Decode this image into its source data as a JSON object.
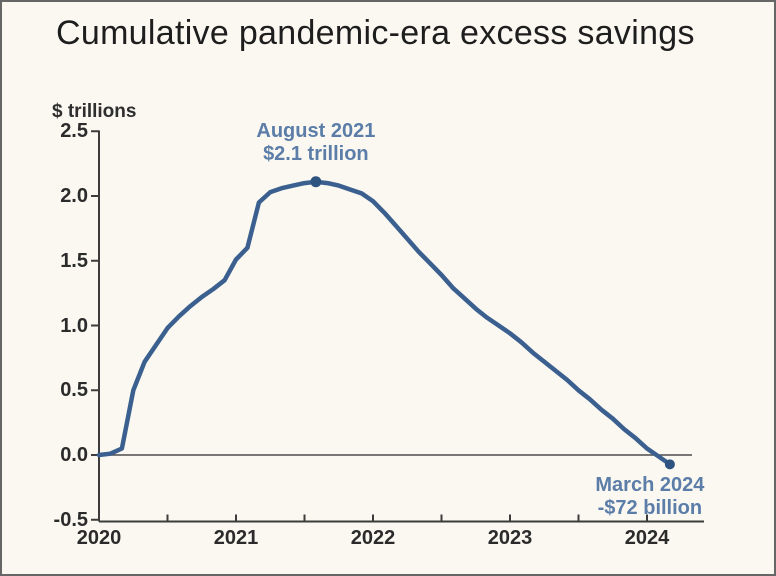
{
  "colors": {
    "background": "#faf8f1",
    "frame_border": "#666666",
    "text": "#1e1e1e",
    "axis": "#3c3c3c",
    "line": "#3b608f",
    "dot": "#2d5380",
    "annotation": "#5b7da8"
  },
  "chart_data": {
    "type": "line",
    "title": "Cumulative pandemic-era excess savings",
    "y_unit_label": "$ trillions",
    "series_name": "Cumulative pandemic-era excess savings",
    "xlim": [
      2020,
      2024.42
    ],
    "ylim": [
      -0.5,
      2.5
    ],
    "grid": "off",
    "legend": "none",
    "x": [
      2020.0,
      2020.083,
      2020.167,
      2020.25,
      2020.333,
      2020.417,
      2020.5,
      2020.583,
      2020.667,
      2020.75,
      2020.833,
      2020.917,
      2021.0,
      2021.083,
      2021.167,
      2021.25,
      2021.333,
      2021.417,
      2021.5,
      2021.583,
      2021.667,
      2021.75,
      2021.833,
      2021.917,
      2022.0,
      2022.083,
      2022.167,
      2022.25,
      2022.333,
      2022.417,
      2022.5,
      2022.583,
      2022.667,
      2022.75,
      2022.833,
      2022.917,
      2023.0,
      2023.083,
      2023.167,
      2023.25,
      2023.333,
      2023.417,
      2023.5,
      2023.583,
      2023.667,
      2023.75,
      2023.833,
      2023.917,
      2024.0,
      2024.083,
      2024.167
    ],
    "values": [
      0.0,
      0.01,
      0.05,
      0.5,
      0.72,
      0.85,
      0.98,
      1.07,
      1.15,
      1.22,
      1.28,
      1.35,
      1.51,
      1.6,
      1.95,
      2.03,
      2.06,
      2.08,
      2.1,
      2.11,
      2.1,
      2.08,
      2.05,
      2.02,
      1.96,
      1.87,
      1.77,
      1.67,
      1.57,
      1.48,
      1.39,
      1.29,
      1.21,
      1.13,
      1.06,
      1.0,
      0.94,
      0.87,
      0.79,
      0.72,
      0.65,
      0.58,
      0.5,
      0.43,
      0.35,
      0.28,
      0.2,
      0.13,
      0.05,
      -0.01,
      -0.072
    ],
    "y_axis": {
      "tick_values": [
        2.5,
        2.0,
        1.5,
        1.0,
        0.5,
        0.0,
        -0.5
      ],
      "tick_labels": [
        "2.5",
        "2.0",
        "1.5",
        "1.0",
        "0.5",
        "0.0",
        "-0.5"
      ]
    },
    "x_axis": {
      "tick_values": [
        2020,
        2021,
        2022,
        2023,
        2024
      ],
      "tick_labels": [
        "2020",
        "2021",
        "2022",
        "2023",
        "2024"
      ],
      "minor_tick_step": 0.5
    },
    "zero_baseline": true,
    "annotations": [
      {
        "name": "peak",
        "line1": "August 2021",
        "line2": "$2.1 trillion",
        "x": 2021.583,
        "y": 2.11,
        "position": "above",
        "dx": 0
      },
      {
        "name": "end",
        "line1": "March 2024",
        "line2": "-$72 billion",
        "x": 2024.167,
        "y": -0.072,
        "position": "below",
        "dx": -20
      }
    ]
  }
}
